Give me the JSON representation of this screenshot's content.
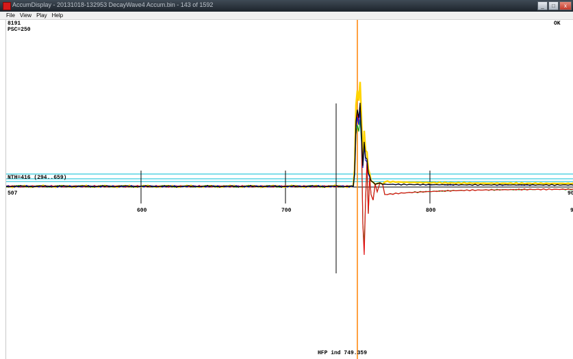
{
  "window": {
    "title": "AccumDisplay - 20131018-132953 DecayWave4 Accum.bin - 143 of 1592",
    "controls": {
      "minimize": "_",
      "maximize": "□",
      "close": "x"
    }
  },
  "menu": {
    "file": "File",
    "view": "View",
    "play": "Play",
    "help": "Help"
  },
  "plot": {
    "top_value": "8191",
    "psc": "PSC=250",
    "status": "OK",
    "nth": "NTH=416 (294..659)",
    "x_start": "507",
    "x_end": "90",
    "x_end2": "9",
    "ticks": [
      "600",
      "700",
      "800"
    ],
    "cursor_label": "HFP ind 749.359"
  },
  "colors": {
    "cursor": "#ff8000",
    "threshold": "#00bcd4",
    "series": [
      "#ffd400",
      "#18a018",
      "#e01010",
      "#1020d0",
      "#000000"
    ]
  }
}
